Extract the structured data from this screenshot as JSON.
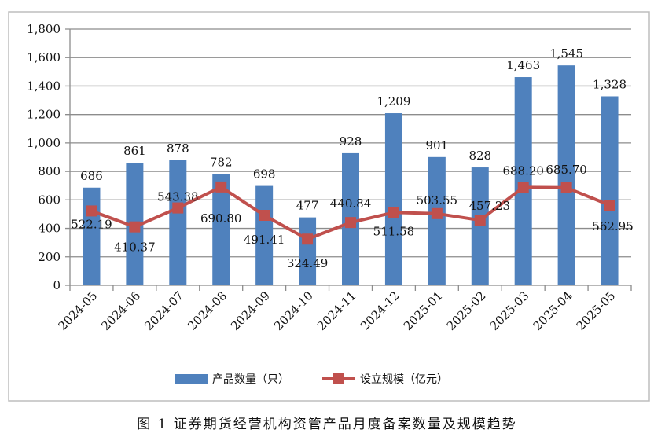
{
  "chart_data": {
    "type": "bar",
    "title": "",
    "caption": "图 1   证券期货经营机构资管产品月度备案数量及规模趋势",
    "categories": [
      "2024-05",
      "2024-06",
      "2024-07",
      "2024-08",
      "2024-09",
      "2024-10",
      "2024-11",
      "2024-12",
      "2025-01",
      "2025-02",
      "2025-03",
      "2025-04",
      "2025-05"
    ],
    "series": [
      {
        "name": "产品数量（只）",
        "type": "bar",
        "color": "#4f81bd",
        "values": [
          686,
          861,
          878,
          782,
          698,
          477,
          928,
          1209,
          901,
          828,
          1463,
          1545,
          1328
        ],
        "labels": [
          "686",
          "861",
          "878",
          "782",
          "698",
          "477",
          "928",
          "1,209",
          "901",
          "828",
          "1,463",
          "1,545",
          "1,328"
        ]
      },
      {
        "name": "设立规模（亿元）",
        "type": "line",
        "color": "#c0504d",
        "values": [
          522.19,
          410.37,
          543.38,
          690.8,
          491.41,
          324.49,
          440.84,
          511.58,
          503.55,
          457.23,
          688.2,
          685.7,
          562.95
        ],
        "labels": [
          "522.19",
          "410.37",
          "543.38",
          "690.80",
          "491.41",
          "324.49",
          "440.84",
          "511.58",
          "503.55",
          "457.23",
          "688.20",
          "685.70",
          "562.95"
        ]
      }
    ],
    "ylim": [
      0,
      1800
    ],
    "yticks": [
      "0",
      "200",
      "400",
      "600",
      "800",
      "1,000",
      "1,200",
      "1,400",
      "1,600",
      "1,800"
    ],
    "grid": true,
    "legend": "bottom"
  }
}
